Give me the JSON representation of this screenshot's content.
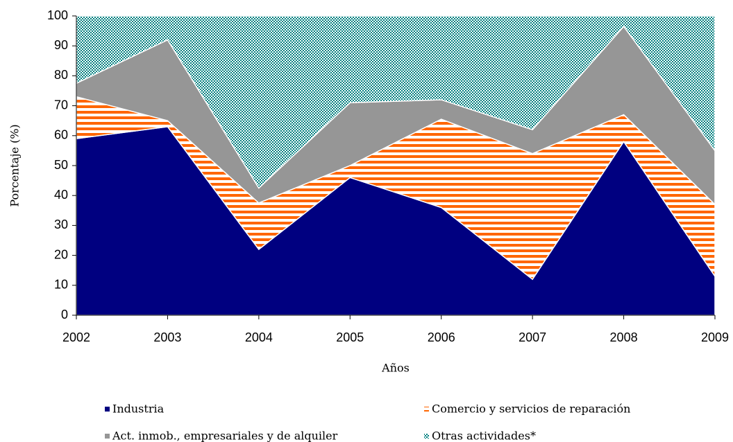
{
  "chart_data": {
    "type": "stacked_area",
    "x_label": "Años",
    "y_label": "Porcentaje (%)",
    "categories": [
      "2002",
      "2003",
      "2004",
      "2005",
      "2006",
      "2007",
      "2008",
      "2009"
    ],
    "series": [
      {
        "name": "Industria",
        "color": "#000080",
        "pattern": "solid",
        "values": [
          59,
          63,
          22,
          46,
          36,
          12,
          58,
          13
        ]
      },
      {
        "name": "Comercio y servicios de reparación",
        "color": "#ff6600",
        "pattern": "stripes",
        "values": [
          14,
          2,
          15.5,
          4,
          29.5,
          42,
          9,
          24
        ]
      },
      {
        "name": "Act. inmob., empresariales y de alquiler",
        "color": "#969696",
        "pattern": "solid",
        "values": [
          4.5,
          27,
          5,
          21,
          6.5,
          8,
          29.5,
          18
        ]
      },
      {
        "name": "Otras actividades*",
        "color": "#008080",
        "pattern": "checker",
        "values": [
          22.5,
          8,
          57.5,
          29,
          28,
          38,
          3.5,
          45
        ]
      }
    ],
    "ylim": [
      0,
      100
    ],
    "yticks": [
      0,
      10,
      20,
      30,
      40,
      50,
      60,
      70,
      80,
      90,
      100
    ],
    "grid": false
  }
}
